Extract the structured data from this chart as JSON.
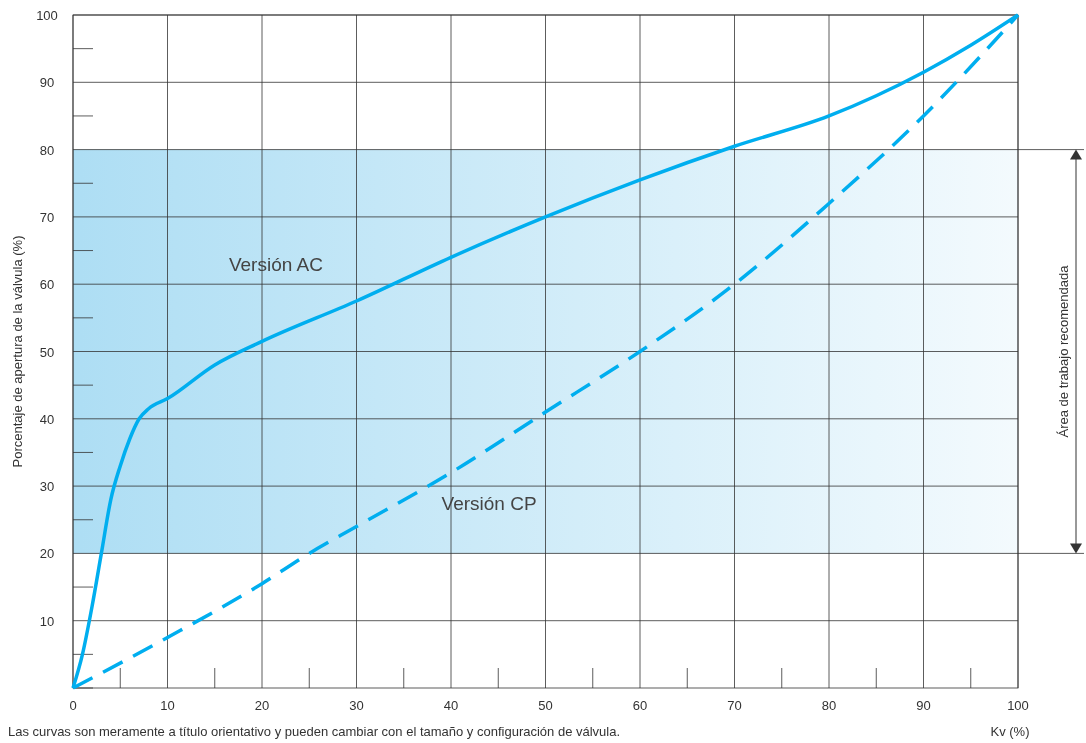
{
  "chart_data": {
    "type": "line",
    "xlabel": "Kv (%)",
    "ylabel": "Porcentaje de apertura de la válvula (%)",
    "annotations": [
      "Las curvas son meramente a título orientativo y pueden cambiar con el tamaño y configuración de válvula."
    ],
    "xlim": [
      0,
      100
    ],
    "ylim": [
      0,
      100
    ],
    "xticks": [
      0,
      10,
      20,
      30,
      40,
      50,
      60,
      70,
      80,
      90,
      100
    ],
    "yticks": [
      {
        "value": 0,
        "label": null
      },
      10,
      20,
      30,
      40,
      50,
      60,
      70,
      80,
      90,
      100
    ],
    "grid": true,
    "bands": [
      {
        "axis": "y",
        "from": 20,
        "to": 80,
        "label": "Área de trabajo recomendada",
        "color": "#9fd8f2"
      }
    ],
    "series": [
      {
        "name": "Versión AC",
        "color": "#00aeef",
        "line_style": "solid",
        "x": [
          0,
          1,
          2,
          3,
          4,
          5,
          6,
          7,
          8,
          10,
          15,
          20,
          30,
          40,
          50,
          60,
          70,
          80,
          85,
          90,
          95,
          100
        ],
        "values": [
          0,
          5,
          12,
          20,
          28,
          33,
          37,
          40,
          41.5,
          43,
          48,
          51.5,
          57.5,
          64,
          70,
          75.5,
          80.5,
          85,
          88,
          91.5,
          95.5,
          100
        ]
      },
      {
        "name": "Versión CP",
        "color": "#00aeef",
        "line_style": "dashed",
        "x": [
          0,
          10,
          20,
          25,
          30,
          40,
          50,
          60,
          70,
          80,
          90,
          100
        ],
        "values": [
          0,
          7.5,
          15.5,
          20,
          24,
          32,
          41,
          50,
          60,
          72,
          85,
          100
        ]
      }
    ]
  }
}
